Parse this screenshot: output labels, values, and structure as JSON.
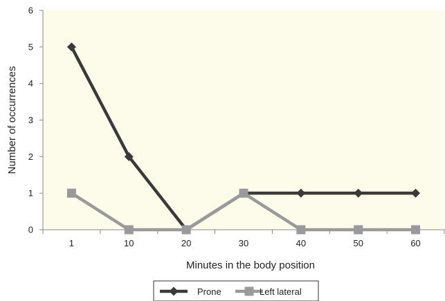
{
  "chart_data": {
    "type": "line",
    "categories": [
      "1",
      "10",
      "20",
      "30",
      "40",
      "50",
      "60"
    ],
    "series": [
      {
        "name": "Prone",
        "values": [
          5,
          2,
          0,
          1,
          1,
          1,
          1
        ],
        "color": "#3a3a3a",
        "marker": "diamond"
      },
      {
        "name": "Left lateral",
        "values": [
          1,
          0,
          0,
          1,
          0,
          0,
          0
        ],
        "color": "#9a9a9a",
        "marker": "square"
      }
    ],
    "title": "",
    "xlabel": "Minutes in the body position",
    "ylabel": "Number of occurrences",
    "ylim": [
      0,
      6
    ],
    "yticks": [
      0,
      1,
      2,
      3,
      4,
      5,
      6
    ],
    "grid": false,
    "legend_position": "bottom",
    "plot_background": "#fdfbe9"
  }
}
